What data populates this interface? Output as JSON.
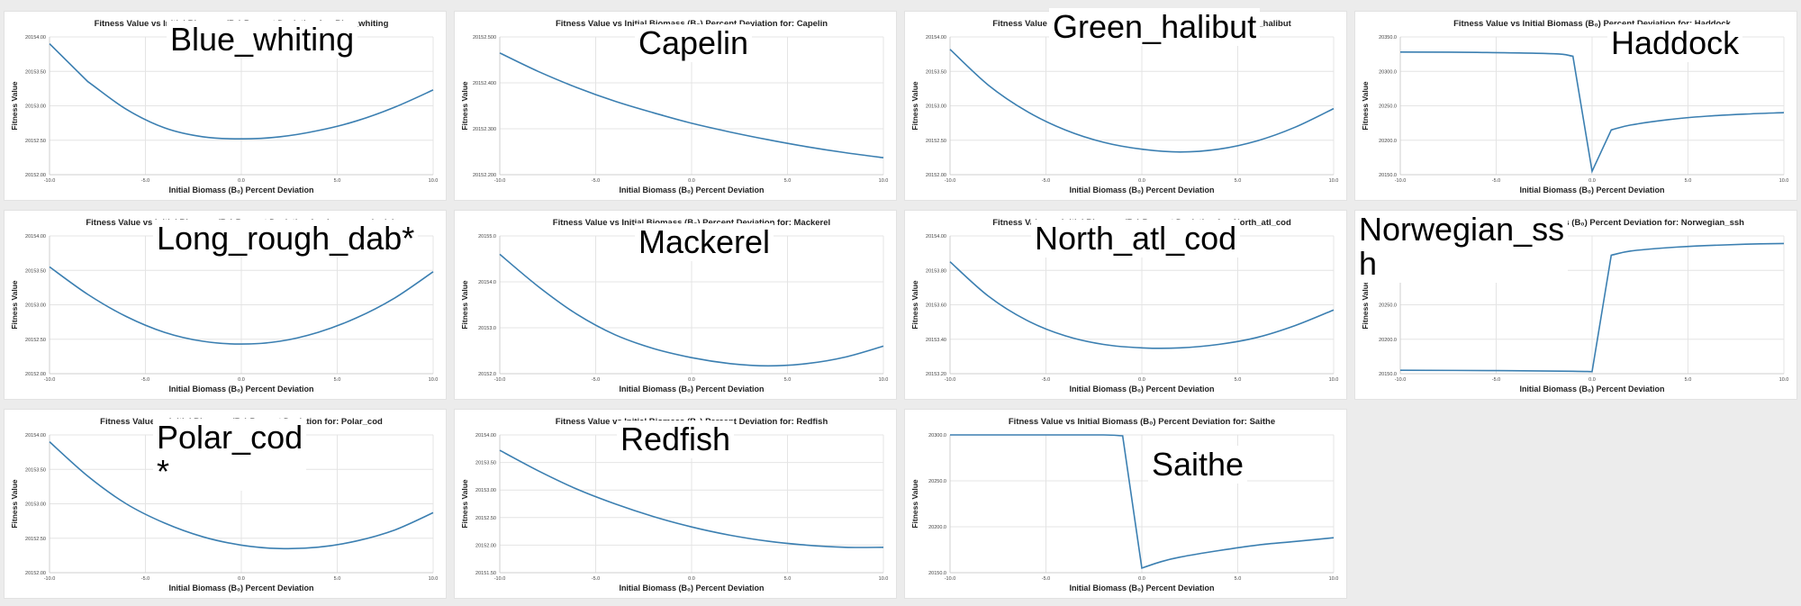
{
  "figure": {
    "common_title_prefix": "Fitness Value vs Initial Biomass (B₀) Percent Deviation for: ",
    "xlabel": "Initial Biomass (B₀) Percent Deviation",
    "ylabel": "Fitness Value"
  },
  "chart_data": [
    {
      "type": "line",
      "name": "Blue_whiting",
      "title": "Fitness Value vs Initial Biomass (B₀) Percent Deviation for: Blue_whiting",
      "overlay_label": "Blue_whiting",
      "xlabel": "Initial Biomass (B₀) Percent Deviation",
      "ylabel": "Fitness Value",
      "xlim": [
        -10,
        10
      ],
      "ylim": [
        20152.0,
        20154.0
      ],
      "x_ticks": [
        "-10.0",
        "-5.0",
        "0.0",
        "5.0",
        "10.0"
      ],
      "y_ticks": [
        "20152.00",
        "20152.50",
        "20153.00",
        "20153.50",
        "20154.00"
      ],
      "x": [
        -10,
        -8,
        -6,
        -4,
        -2,
        0,
        2,
        4,
        6,
        8,
        10
      ],
      "y": [
        20153.9,
        20153.35,
        20152.95,
        20152.68,
        20152.55,
        20152.52,
        20152.55,
        20152.64,
        20152.78,
        20152.98,
        20153.23
      ]
    },
    {
      "type": "line",
      "name": "Capelin",
      "title": "Fitness Value vs Initial Biomass (B₀) Percent Deviation for: Capelin",
      "overlay_label": "Capelin",
      "xlabel": "Initial Biomass (B₀) Percent Deviation",
      "ylabel": "Fitness Value",
      "xlim": [
        -10,
        10
      ],
      "ylim": [
        20152.2,
        20152.5
      ],
      "x_ticks": [
        "-10.0",
        "-5.0",
        "0.0",
        "5.0",
        "10.0"
      ],
      "y_ticks": [
        "20152.200",
        "20152.300",
        "20152.400",
        "20152.500"
      ],
      "x": [
        -10,
        -8,
        -6,
        -4,
        -2,
        0,
        2,
        4,
        6,
        8,
        10
      ],
      "y": [
        20152.465,
        20152.425,
        20152.39,
        20152.36,
        20152.335,
        20152.312,
        20152.293,
        20152.276,
        20152.261,
        20152.248,
        20152.237
      ]
    },
    {
      "type": "line",
      "name": "Green_halibut",
      "title": "Fitness Value vs Initial Biomass (B₀) Percent Deviation for: Green_halibut",
      "overlay_label": "Green_halibut",
      "xlabel": "Initial Biomass (B₀) Percent Deviation",
      "ylabel": "Fitness Value",
      "xlim": [
        -10,
        10
      ],
      "ylim": [
        20152.0,
        20154.0
      ],
      "x_ticks": [
        "-10.0",
        "-5.0",
        "0.0",
        "5.0",
        "10.0"
      ],
      "y_ticks": [
        "20152.00",
        "20152.50",
        "20153.00",
        "20153.50",
        "20154.00"
      ],
      "x": [
        -10,
        -8,
        -6,
        -4,
        -2,
        0,
        2,
        4,
        6,
        8,
        10
      ],
      "y": [
        20153.82,
        20153.3,
        20152.92,
        20152.65,
        20152.47,
        20152.37,
        20152.33,
        20152.37,
        20152.49,
        20152.69,
        20152.96
      ]
    },
    {
      "type": "line",
      "name": "Haddock",
      "title": "Fitness Value vs Initial Biomass (B₀) Percent Deviation for: Haddock",
      "overlay_label": "Haddock",
      "xlabel": "Initial Biomass (B₀) Percent Deviation",
      "ylabel": "Fitness Value",
      "xlim": [
        -10,
        10
      ],
      "ylim": [
        20150.0,
        20350.0
      ],
      "x_ticks": [
        "-10.0",
        "-5.0",
        "0.0",
        "5.0",
        "10.0"
      ],
      "y_ticks": [
        "20150.0",
        "20200.0",
        "20250.0",
        "20300.0",
        "20350.0"
      ],
      "x": [
        -10,
        -6,
        -2,
        -1,
        0,
        1,
        2,
        4,
        6,
        8,
        10
      ],
      "y": [
        20328,
        20327.5,
        20325.5,
        20322,
        20155,
        20215,
        20222,
        20230,
        20235,
        20238,
        20240
      ]
    },
    {
      "type": "line",
      "name": "Long_rough_dab",
      "title": "Fitness Value vs Initial Biomass (B₀) Percent Deviation for: Long_rough_dab",
      "overlay_label": "Long_rough_dab*",
      "xlabel": "Initial Biomass (B₀) Percent Deviation",
      "ylabel": "Fitness Value",
      "xlim": [
        -10,
        10
      ],
      "ylim": [
        20152.0,
        20154.0
      ],
      "x_ticks": [
        "-10.0",
        "-5.0",
        "0.0",
        "5.0",
        "10.0"
      ],
      "y_ticks": [
        "20152.00",
        "20152.50",
        "20153.00",
        "20153.50",
        "20154.00"
      ],
      "x": [
        -10,
        -8,
        -6,
        -4,
        -2,
        0,
        2,
        4,
        6,
        8,
        10
      ],
      "y": [
        20153.55,
        20153.15,
        20152.83,
        20152.6,
        20152.47,
        20152.43,
        20152.47,
        20152.6,
        20152.81,
        20153.1,
        20153.48
      ]
    },
    {
      "type": "line",
      "name": "Mackerel",
      "title": "Fitness Value vs Initial Biomass (B₀) Percent Deviation for: Mackerel",
      "overlay_label": "Mackerel",
      "xlabel": "Initial Biomass (B₀) Percent Deviation",
      "ylabel": "Fitness Value",
      "xlim": [
        -10,
        10
      ],
      "ylim": [
        20152.0,
        20155.0
      ],
      "x_ticks": [
        "-10.0",
        "-5.0",
        "0.0",
        "5.0",
        "10.0"
      ],
      "y_ticks": [
        "20152.0",
        "20153.0",
        "20154.0",
        "20155.0"
      ],
      "x": [
        -10,
        -8,
        -6,
        -4,
        -2,
        0,
        2,
        4,
        6,
        8,
        10
      ],
      "y": [
        20154.6,
        20153.9,
        20153.3,
        20152.85,
        20152.55,
        20152.35,
        20152.22,
        20152.17,
        20152.22,
        20152.36,
        20152.6
      ]
    },
    {
      "type": "line",
      "name": "North_atl_cod",
      "title": "Fitness Value vs Initial Biomass (B₀) Percent Deviation for: North_atl_cod",
      "overlay_label": "North_atl_cod",
      "xlabel": "Initial Biomass (B₀) Percent Deviation",
      "ylabel": "Fitness Value",
      "xlim": [
        -10,
        10
      ],
      "ylim": [
        20153.2,
        20154.0
      ],
      "x_ticks": [
        "-10.0",
        "-5.0",
        "0.0",
        "5.0",
        "10.0"
      ],
      "y_ticks": [
        "20153.20",
        "20153.40",
        "20153.60",
        "20153.80",
        "20154.00"
      ],
      "x": [
        -10,
        -8,
        -6,
        -4,
        -2,
        0,
        2,
        4,
        6,
        8,
        10
      ],
      "y": [
        20153.85,
        20153.65,
        20153.51,
        20153.42,
        20153.37,
        20153.35,
        20153.35,
        20153.37,
        20153.41,
        20153.48,
        20153.57
      ]
    },
    {
      "type": "line",
      "name": "Norwegian_ssh",
      "title": "Fitness Value vs Initial Biomass (B₀) Percent Deviation for: Norwegian_ssh",
      "overlay_label": "Norwegian_ss\nh",
      "xlabel": "Initial Biomass (B₀) Percent Deviation",
      "ylabel": "Fitness Value",
      "xlim": [
        -10,
        10
      ],
      "ylim": [
        20150.0,
        20350.0
      ],
      "x_ticks": [
        "-10.0",
        "-5.0",
        "0.0",
        "5.0",
        "10.0"
      ],
      "y_ticks": [
        "20150.0",
        "20200.0",
        "20250.0",
        "20300.0",
        "20350.0"
      ],
      "x": [
        -10,
        -5,
        -1,
        0,
        1,
        2,
        4,
        6,
        8,
        10
      ],
      "y": [
        20155,
        20154.5,
        20153.5,
        20153,
        20322,
        20328,
        20333,
        20336,
        20338,
        20339
      ]
    },
    {
      "type": "line",
      "name": "Polar_cod",
      "title": "Fitness Value vs Initial Biomass (B₀) Percent Deviation for: Polar_cod",
      "overlay_label": "Polar_cod\n*",
      "xlabel": "Initial Biomass (B₀) Percent Deviation",
      "ylabel": "Fitness Value",
      "xlim": [
        -10,
        10
      ],
      "ylim": [
        20152.0,
        20154.0
      ],
      "x_ticks": [
        "-10.0",
        "-5.0",
        "0.0",
        "5.0",
        "10.0"
      ],
      "y_ticks": [
        "20152.00",
        "20152.50",
        "20153.00",
        "20153.50",
        "20154.00"
      ],
      "x": [
        -10,
        -8,
        -6,
        -4,
        -2,
        0,
        2,
        4,
        6,
        8,
        10
      ],
      "y": [
        20153.9,
        20153.4,
        20153.0,
        20152.72,
        20152.52,
        20152.4,
        20152.35,
        20152.37,
        20152.46,
        20152.62,
        20152.87
      ]
    },
    {
      "type": "line",
      "name": "Redfish",
      "title": "Fitness Value vs Initial Biomass (B₀) Percent Deviation for: Redfish",
      "overlay_label": "Redfish",
      "xlabel": "Initial Biomass (B₀) Percent Deviation",
      "ylabel": "Fitness Value",
      "xlim": [
        -10,
        10
      ],
      "ylim": [
        20151.5,
        20154.0
      ],
      "x_ticks": [
        "-10.0",
        "-5.0",
        "0.0",
        "5.0",
        "10.0"
      ],
      "y_ticks": [
        "20151.50",
        "20152.00",
        "20152.50",
        "20153.00",
        "20153.50",
        "20154.00"
      ],
      "x": [
        -10,
        -8,
        -6,
        -4,
        -2,
        0,
        2,
        4,
        6,
        8,
        10
      ],
      "y": [
        20153.72,
        20153.35,
        20153.02,
        20152.75,
        20152.52,
        20152.33,
        20152.18,
        20152.07,
        20152.0,
        20151.96,
        20151.96
      ]
    },
    {
      "type": "line",
      "name": "Saithe",
      "title": "Fitness Value vs Initial Biomass (B₀) Percent Deviation for: Saithe",
      "overlay_label": "Saithe",
      "xlabel": "Initial Biomass (B₀) Percent Deviation",
      "ylabel": "Fitness Value",
      "xlim": [
        -10,
        10
      ],
      "ylim": [
        20150.0,
        20300.0
      ],
      "x_ticks": [
        "-10.0",
        "-5.0",
        "0.0",
        "5.0",
        "10.0"
      ],
      "y_ticks": [
        "20150.0",
        "20200.0",
        "20250.0",
        "20300.0"
      ],
      "x": [
        -10,
        -5,
        -2,
        -1,
        0,
        1,
        2,
        4,
        6,
        8,
        10
      ],
      "y": [
        20300,
        20300,
        20300,
        20299,
        20155,
        20162,
        20167,
        20174,
        20180,
        20184,
        20188
      ]
    }
  ]
}
